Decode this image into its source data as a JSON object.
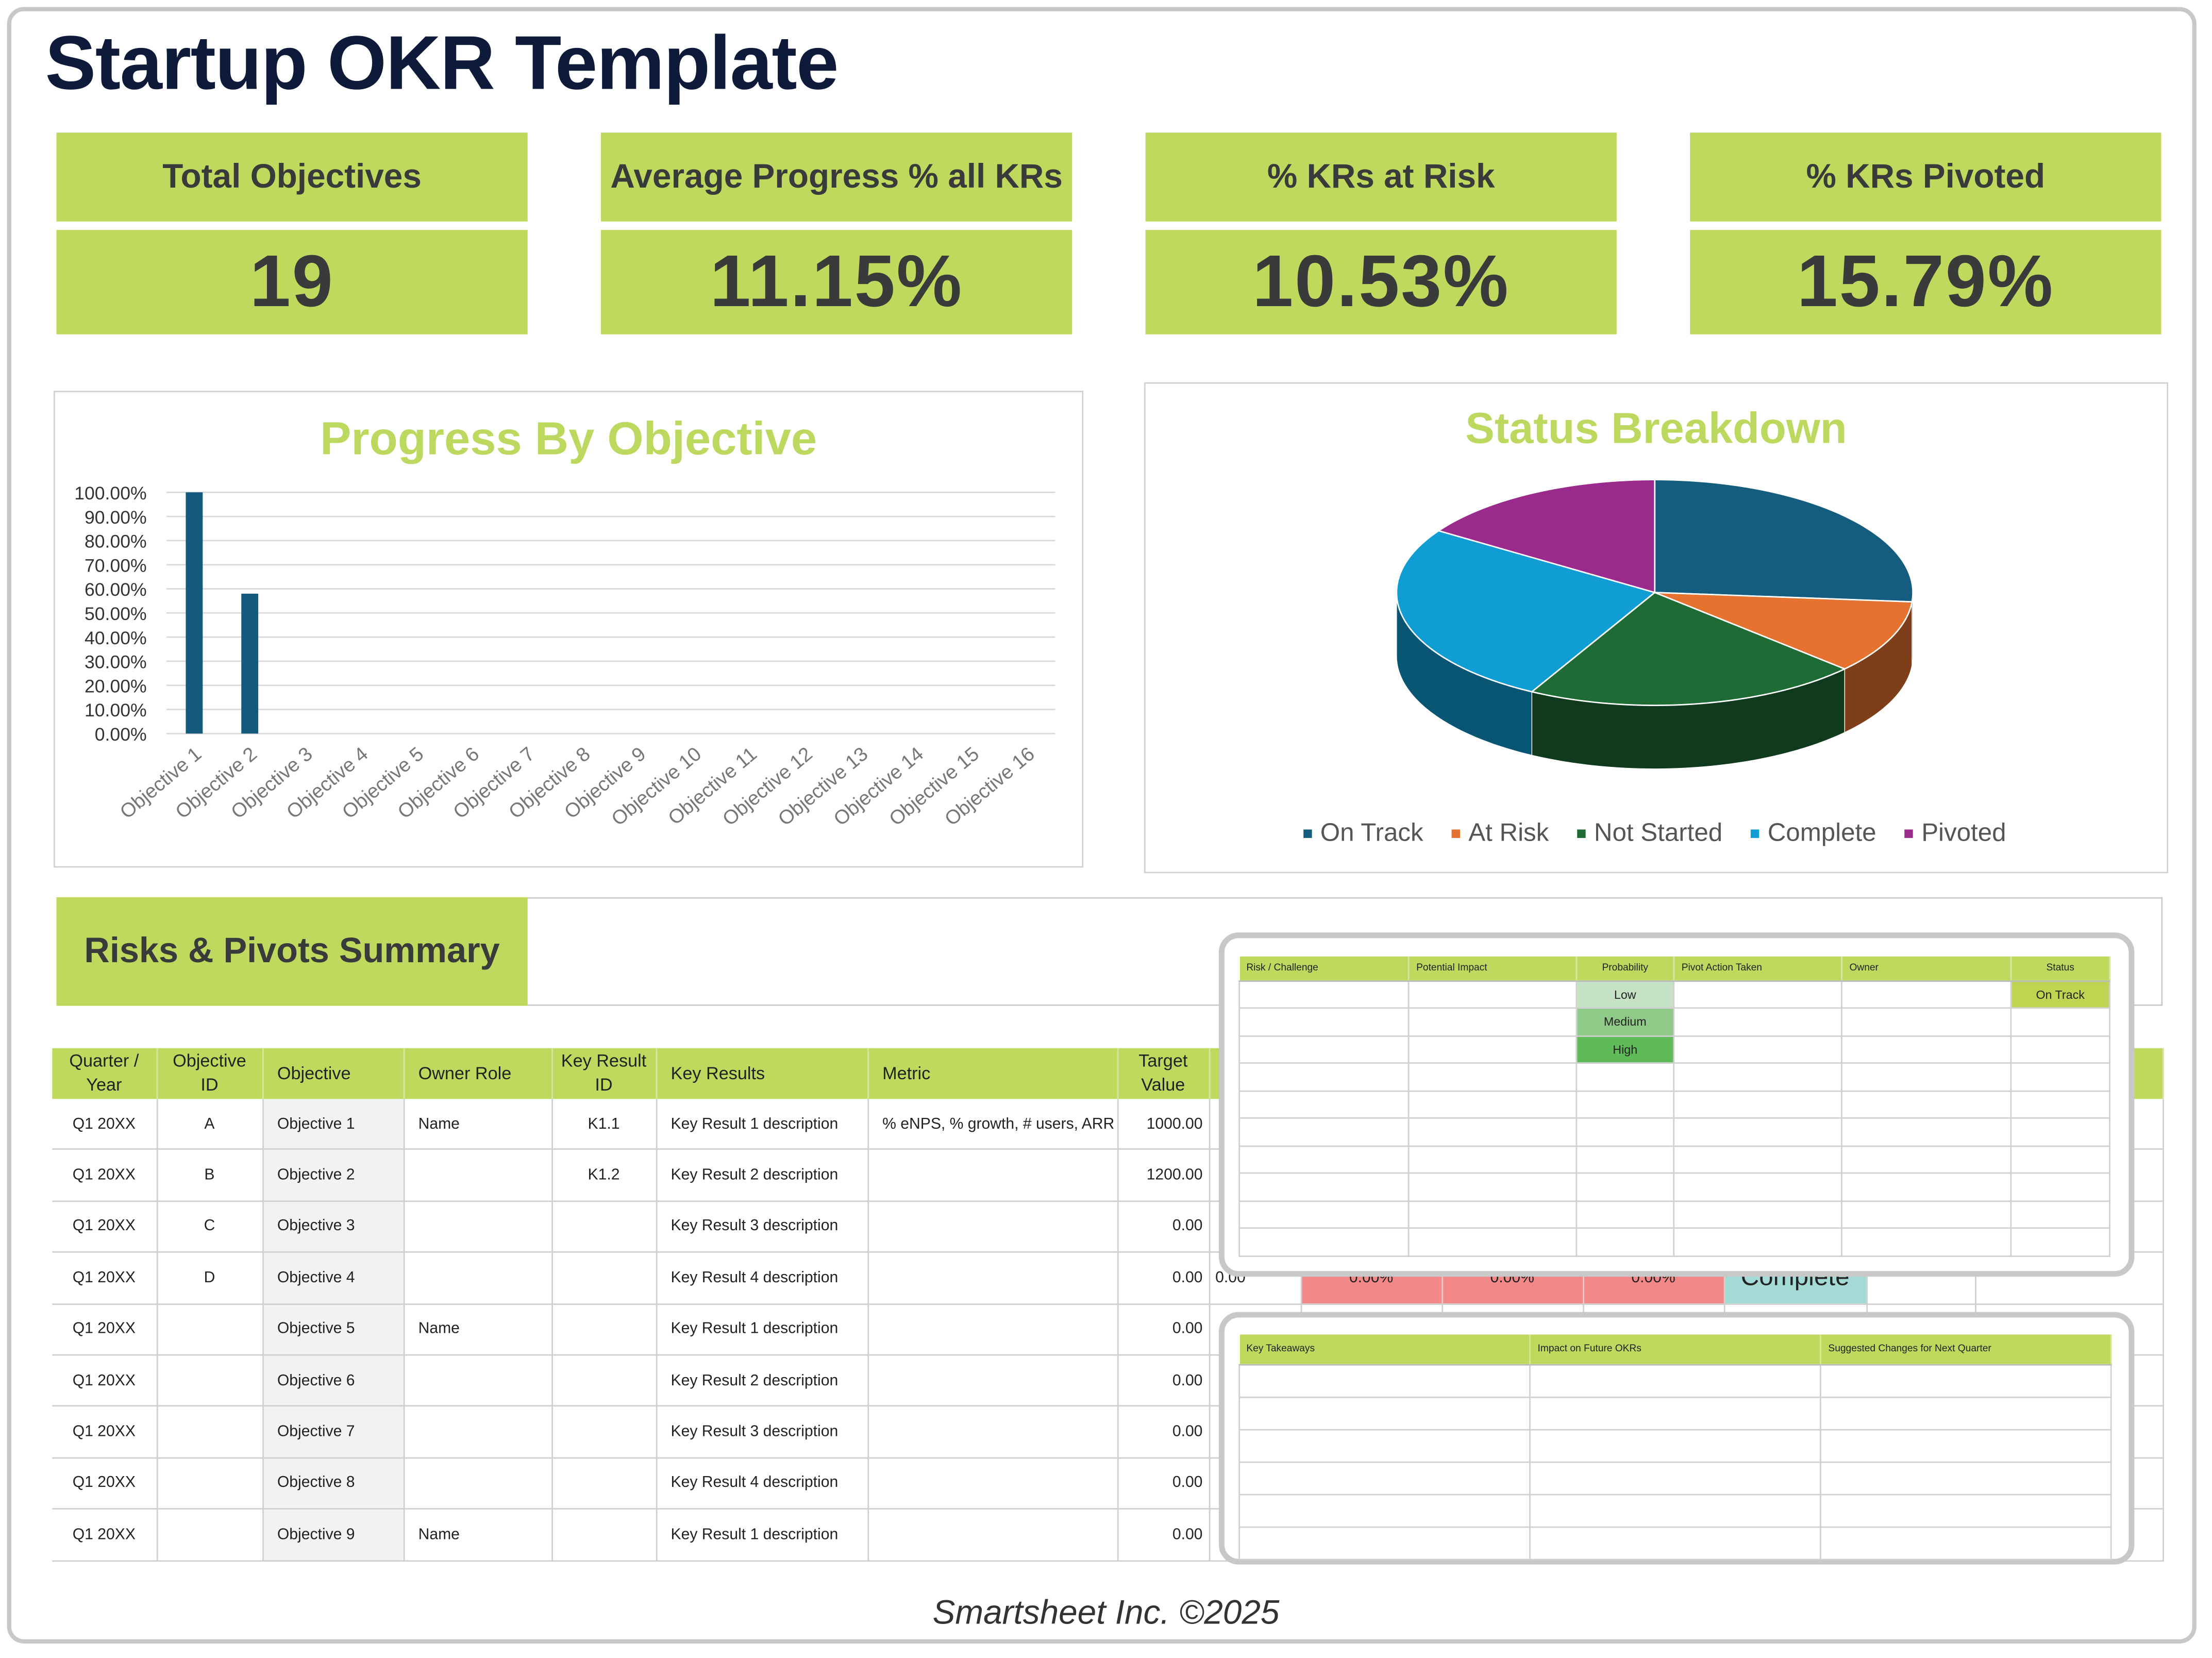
{
  "title": "Startup OKR Template",
  "kpis": [
    {
      "label": "Total Objectives",
      "value": "19"
    },
    {
      "label": "Average Progress % all KRs",
      "value": "11.15%"
    },
    {
      "label": "% KRs at Risk",
      "value": "10.53%"
    },
    {
      "label": "% KRs Pivoted",
      "value": "15.79%"
    }
  ],
  "chart_data": [
    {
      "type": "bar",
      "title": "Progress By Objective",
      "categories": [
        "Objective 1",
        "Objective 2",
        "Objective 3",
        "Objective 4",
        "Objective 5",
        "Objective 6",
        "Objective 7",
        "Objective 8",
        "Objective 9",
        "Objective 10",
        "Objective 11",
        "Objective 12",
        "Objective 13",
        "Objective 14",
        "Objective 15",
        "Objective 16"
      ],
      "values": [
        100,
        58,
        0,
        0,
        0,
        0,
        0,
        0,
        0,
        0,
        0,
        0,
        0,
        0,
        0,
        0
      ],
      "yticks": [
        "0.00%",
        "10.00%",
        "20.00%",
        "30.00%",
        "40.00%",
        "50.00%",
        "60.00%",
        "70.00%",
        "80.00%",
        "90.00%",
        "100.00%"
      ],
      "ylim": [
        0,
        100
      ],
      "grid": true,
      "color": "#145a7c"
    },
    {
      "type": "pie",
      "style": "3d",
      "title": "Status Breakdown",
      "categories": [
        "On Track",
        "At Risk",
        "Not Started",
        "Complete",
        "Pivoted"
      ],
      "values": [
        5,
        2,
        4,
        5,
        3
      ],
      "colors": [
        "#155d7e",
        "#e5722e",
        "#1e6b36",
        "#0f9dd3",
        "#9a2a8c"
      ],
      "legend": "bottom"
    }
  ],
  "risks_banner": "Risks & Pivots Summary",
  "main_table": {
    "headers": [
      "Quarter / Year",
      "Objective ID",
      "Objective",
      "Owner Role",
      "Key Result ID",
      "Key Results",
      "Metric",
      "Target Value",
      "",
      "",
      "",
      "",
      "",
      "",
      ""
    ],
    "rows": [
      [
        "Q1 20XX",
        "A",
        "Objective 1",
        "Name",
        "K1.1",
        "Key Result 1 description",
        "% eNPS, % growth, # users, ARR",
        "1000.00",
        "",
        "",
        "",
        "",
        "",
        "",
        ""
      ],
      [
        "Q1 20XX",
        "B",
        "Objective 2",
        "",
        "K1.2",
        "Key Result 2 description",
        "",
        "1200.00",
        "",
        "",
        "",
        "",
        "",
        "",
        ""
      ],
      [
        "Q1 20XX",
        "C",
        "Objective 3",
        "",
        "",
        "Key Result 3 description",
        "",
        "0.00",
        "",
        "",
        "",
        "",
        "",
        "",
        ""
      ],
      [
        "Q1 20XX",
        "D",
        "Objective 4",
        "",
        "",
        "Key Result 4 description",
        "",
        "0.00",
        "0.00",
        "0.00%",
        "0.00%",
        "0.00%",
        "Complete",
        "",
        ""
      ],
      [
        "Q1 20XX",
        "",
        "Objective 5",
        "Name",
        "",
        "Key Result 1 description",
        "",
        "0.00",
        "",
        "",
        "",
        "",
        "",
        "",
        ""
      ],
      [
        "Q1 20XX",
        "",
        "Objective 6",
        "",
        "",
        "Key Result 2 description",
        "",
        "0.00",
        "",
        "",
        "",
        "",
        "",
        "",
        ""
      ],
      [
        "Q1 20XX",
        "",
        "Objective 7",
        "",
        "",
        "Key Result 3 description",
        "",
        "0.00",
        "",
        "",
        "",
        "",
        "",
        "",
        ""
      ],
      [
        "Q1 20XX",
        "",
        "Objective 8",
        "",
        "",
        "Key Result 4 description",
        "",
        "0.00",
        "",
        "",
        "",
        "",
        "",
        "",
        ""
      ],
      [
        "Q1 20XX",
        "",
        "Objective 9",
        "Name",
        "",
        "Key Result 1 description",
        "",
        "0.00",
        "",
        "",
        "",
        "",
        "",
        "",
        ""
      ]
    ]
  },
  "risk_table": {
    "headers": [
      "Risk / Challenge",
      "Potential Impact",
      "Probability",
      "Pivot Action Taken",
      "Owner",
      "Status"
    ],
    "rows": [
      [
        "",
        "",
        "Low",
        "",
        "",
        "On Track"
      ],
      [
        "",
        "",
        "Medium",
        "",
        "",
        ""
      ],
      [
        "",
        "",
        "High",
        "",
        "",
        ""
      ],
      [
        "",
        "",
        "",
        "",
        "",
        ""
      ],
      [
        "",
        "",
        "",
        "",
        "",
        ""
      ],
      [
        "",
        "",
        "",
        "",
        "",
        ""
      ],
      [
        "",
        "",
        "",
        "",
        "",
        ""
      ],
      [
        "",
        "",
        "",
        "",
        "",
        ""
      ],
      [
        "",
        "",
        "",
        "",
        "",
        ""
      ],
      [
        "",
        "",
        "",
        "",
        "",
        ""
      ]
    ],
    "colors": {
      "Low": "#c6e2c4",
      "Medium": "#8fca88",
      "High": "#5fba58",
      "On Track": "#bfd450"
    }
  },
  "takeaways_table": {
    "headers": [
      "Key Takeaways",
      "Impact on Future OKRs",
      "Suggested Changes for Next Quarter"
    ],
    "rows": [
      [
        "",
        "",
        ""
      ],
      [
        "",
        "",
        ""
      ],
      [
        "",
        "",
        ""
      ],
      [
        "",
        "",
        ""
      ],
      [
        "",
        "",
        ""
      ],
      [
        "",
        "",
        ""
      ]
    ]
  },
  "colors": {
    "accent": "#bfd85e",
    "title": "#0e1a3a",
    "at_risk_cell": "#f28888",
    "complete_cell": "#a3dad6"
  },
  "footer": "Smartsheet Inc. ©2025"
}
